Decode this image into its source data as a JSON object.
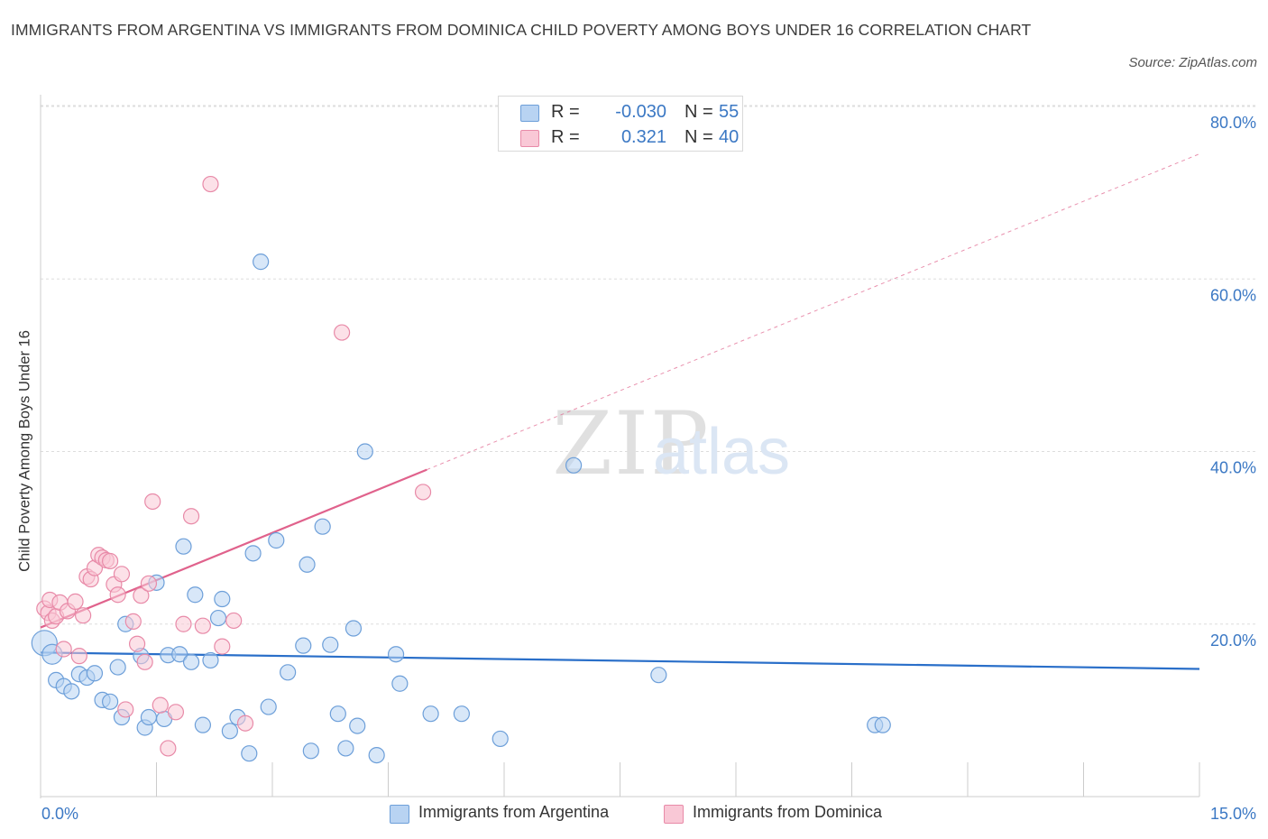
{
  "title": "IMMIGRANTS FROM ARGENTINA VS IMMIGRANTS FROM DOMINICA CHILD POVERTY AMONG BOYS UNDER 16 CORRELATION CHART",
  "source": "Source: ZipAtlas.com",
  "colors": {
    "argentina_fill": "#b8d3f2",
    "argentina_stroke": "#6d9fd9",
    "argentina_line": "#2a6fc9",
    "dominica_fill": "#f9c8d6",
    "dominica_stroke": "#e88aa8",
    "dominica_line": "#e0628c",
    "axis_text": "#3b78c4",
    "grid": "#dddddd"
  },
  "legend": {
    "rows": [
      {
        "r_label": "R =",
        "r_value": "-0.030",
        "n_label": "N =",
        "n_value": "55"
      },
      {
        "r_label": "R =",
        "r_value": "0.321",
        "n_label": "N =",
        "n_value": "40"
      }
    ]
  },
  "chart_data": {
    "type": "scatter",
    "title": "IMMIGRANTS FROM ARGENTINA VS IMMIGRANTS FROM DOMINICA CHILD POVERTY AMONG BOYS UNDER 16 CORRELATION CHART",
    "xlabel": "",
    "ylabel": "Child Poverty Among Boys Under 16",
    "xlim": [
      0,
      15
    ],
    "ylim": [
      0,
      80
    ],
    "x_tick_labels": [
      "0.0%",
      "15.0%"
    ],
    "y_ticks": [
      20,
      40,
      60,
      80
    ],
    "y_tick_labels": [
      "20.0%",
      "40.0%",
      "60.0%",
      "80.0%"
    ],
    "grid": true,
    "legend_position": "bottom",
    "watermark": "ZIPatlas",
    "series": [
      {
        "name": "Immigrants from Argentina",
        "r": -0.03,
        "n": 55,
        "trend": {
          "x": [
            0,
            15
          ],
          "y": [
            16.7,
            14.8
          ],
          "dashed_extension": false
        },
        "points": [
          [
            0.05,
            17.8
          ],
          [
            0.15,
            16.5
          ],
          [
            0.2,
            13.5
          ],
          [
            0.3,
            12.8
          ],
          [
            0.4,
            12.2
          ],
          [
            0.5,
            14.2
          ],
          [
            0.6,
            13.8
          ],
          [
            0.7,
            14.3
          ],
          [
            0.8,
            11.2
          ],
          [
            0.9,
            11.0
          ],
          [
            1.0,
            15.0
          ],
          [
            1.05,
            9.2
          ],
          [
            1.1,
            20.0
          ],
          [
            1.3,
            16.3
          ],
          [
            1.35,
            8.0
          ],
          [
            1.4,
            9.2
          ],
          [
            1.5,
            24.8
          ],
          [
            1.6,
            9.0
          ],
          [
            1.65,
            16.4
          ],
          [
            1.8,
            16.5
          ],
          [
            1.85,
            29.0
          ],
          [
            1.95,
            15.6
          ],
          [
            2.0,
            23.4
          ],
          [
            2.1,
            8.3
          ],
          [
            2.2,
            15.8
          ],
          [
            2.3,
            20.7
          ],
          [
            2.35,
            22.9
          ],
          [
            2.45,
            7.6
          ],
          [
            2.55,
            9.2
          ],
          [
            2.7,
            5.0
          ],
          [
            2.75,
            28.2
          ],
          [
            2.85,
            62.0
          ],
          [
            2.95,
            10.4
          ],
          [
            3.05,
            29.7
          ],
          [
            3.2,
            14.4
          ],
          [
            3.4,
            17.5
          ],
          [
            3.45,
            26.9
          ],
          [
            3.5,
            5.3
          ],
          [
            3.65,
            31.3
          ],
          [
            3.75,
            17.6
          ],
          [
            3.85,
            9.6
          ],
          [
            3.95,
            5.6
          ],
          [
            4.05,
            19.5
          ],
          [
            4.1,
            8.2
          ],
          [
            4.2,
            40.0
          ],
          [
            4.35,
            4.8
          ],
          [
            4.6,
            16.5
          ],
          [
            4.65,
            13.1
          ],
          [
            5.05,
            9.6
          ],
          [
            5.45,
            9.6
          ],
          [
            5.95,
            6.7
          ],
          [
            6.9,
            38.4
          ],
          [
            8.0,
            14.1
          ],
          [
            10.8,
            8.3
          ],
          [
            10.9,
            8.3
          ]
        ]
      },
      {
        "name": "Immigrants from Dominica",
        "r": 0.321,
        "n": 40,
        "trend": {
          "x": [
            0,
            5.0
          ],
          "y": [
            19.6,
            37.9
          ],
          "dashed_extension": true,
          "dashed_to": [
            15,
            74.5
          ]
        },
        "points": [
          [
            0.05,
            21.8
          ],
          [
            0.1,
            21.3
          ],
          [
            0.12,
            22.8
          ],
          [
            0.15,
            20.4
          ],
          [
            0.2,
            20.9
          ],
          [
            0.25,
            22.5
          ],
          [
            0.3,
            17.1
          ],
          [
            0.35,
            21.5
          ],
          [
            0.45,
            22.6
          ],
          [
            0.5,
            16.3
          ],
          [
            0.55,
            21.0
          ],
          [
            0.6,
            25.5
          ],
          [
            0.65,
            25.2
          ],
          [
            0.7,
            26.5
          ],
          [
            0.75,
            28.0
          ],
          [
            0.8,
            27.7
          ],
          [
            0.85,
            27.4
          ],
          [
            0.9,
            27.3
          ],
          [
            0.95,
            24.6
          ],
          [
            1.0,
            23.4
          ],
          [
            1.05,
            25.8
          ],
          [
            1.1,
            10.1
          ],
          [
            1.2,
            20.3
          ],
          [
            1.25,
            17.7
          ],
          [
            1.3,
            23.3
          ],
          [
            1.35,
            15.6
          ],
          [
            1.4,
            24.7
          ],
          [
            1.45,
            34.2
          ],
          [
            1.55,
            10.6
          ],
          [
            1.65,
            5.6
          ],
          [
            1.75,
            9.8
          ],
          [
            1.85,
            20.0
          ],
          [
            1.95,
            32.5
          ],
          [
            2.1,
            19.8
          ],
          [
            2.2,
            71.0
          ],
          [
            2.35,
            17.4
          ],
          [
            2.5,
            20.4
          ],
          [
            2.65,
            8.5
          ],
          [
            3.9,
            53.8
          ],
          [
            4.95,
            35.3
          ]
        ]
      }
    ]
  },
  "bottom_legend": {
    "items": [
      {
        "label": "Immigrants from Argentina"
      },
      {
        "label": "Immigrants from Dominica"
      }
    ]
  }
}
